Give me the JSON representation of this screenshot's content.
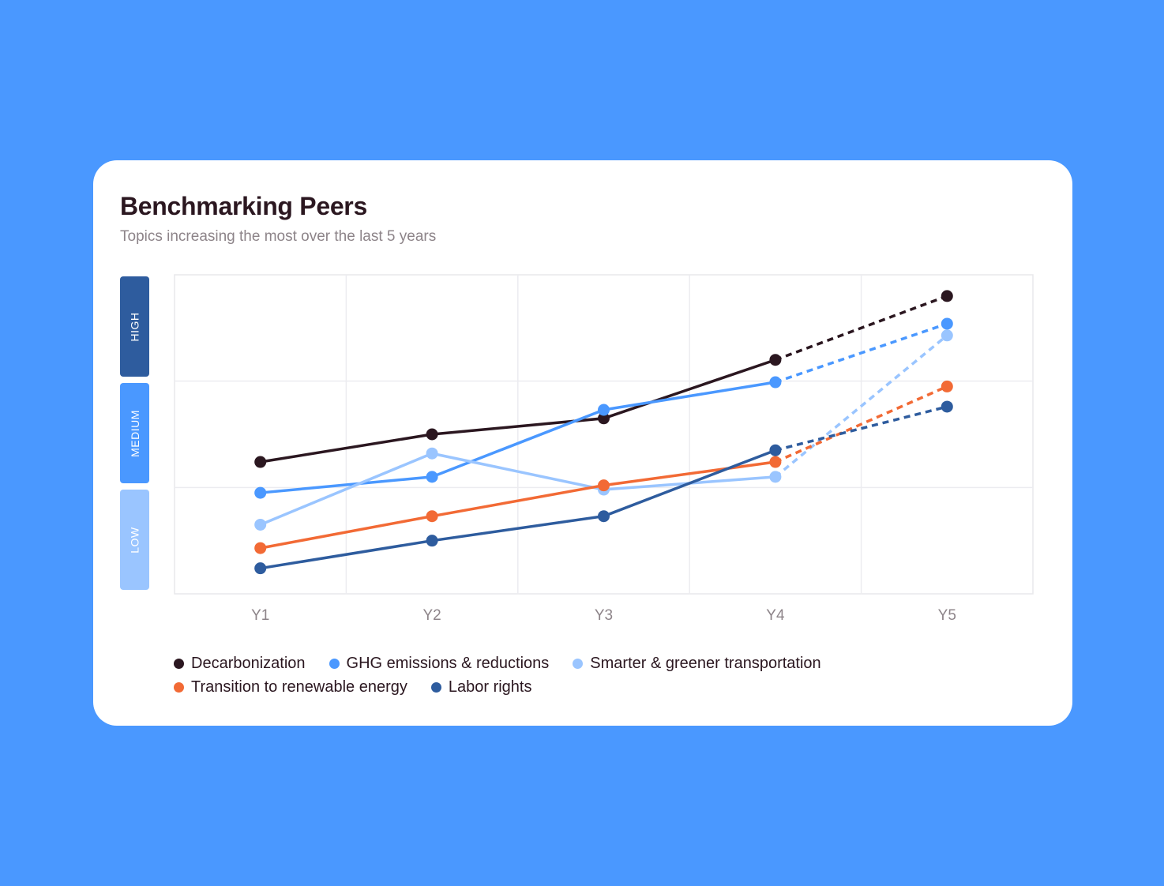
{
  "title": "Benchmarking Peers",
  "subtitle": "Topics increasing the most over the last 5 years",
  "bands": {
    "high": "HIGH",
    "medium": "MEDIUM",
    "low": "LOW"
  },
  "chart_data": {
    "type": "line",
    "title": "Benchmarking Peers",
    "subtitle": "Topics increasing the most over the last 5 years",
    "categories": [
      "Y1",
      "Y2",
      "Y3",
      "Y4",
      "Y5"
    ],
    "y_bands": [
      "LOW",
      "MEDIUM",
      "HIGH"
    ],
    "ylim": [
      0,
      3
    ],
    "projected_from_index": 3,
    "projected_style": "dashed",
    "grid": true,
    "legend_position": "bottom-left",
    "series": [
      {
        "name": "Decarbonization",
        "color": "#2b1720",
        "values": [
          1.24,
          1.5,
          1.65,
          2.2,
          2.8
        ]
      },
      {
        "name": "GHG emissions & reductions",
        "color": "#4a98ff",
        "values": [
          0.95,
          1.1,
          1.73,
          1.99,
          2.54
        ]
      },
      {
        "name": "Smarter & greener transportation",
        "color": "#9ac5ff",
        "values": [
          0.65,
          1.32,
          0.98,
          1.1,
          2.43
        ]
      },
      {
        "name": "Transition to renewable energy",
        "color": "#f26a35",
        "values": [
          0.43,
          0.73,
          1.02,
          1.24,
          1.95
        ]
      },
      {
        "name": "Labor rights",
        "color": "#2e5c9e",
        "values": [
          0.24,
          0.5,
          0.73,
          1.35,
          1.76
        ]
      }
    ]
  },
  "legend": {
    "rows": [
      [
        0,
        1,
        2
      ],
      [
        3,
        4
      ]
    ]
  }
}
